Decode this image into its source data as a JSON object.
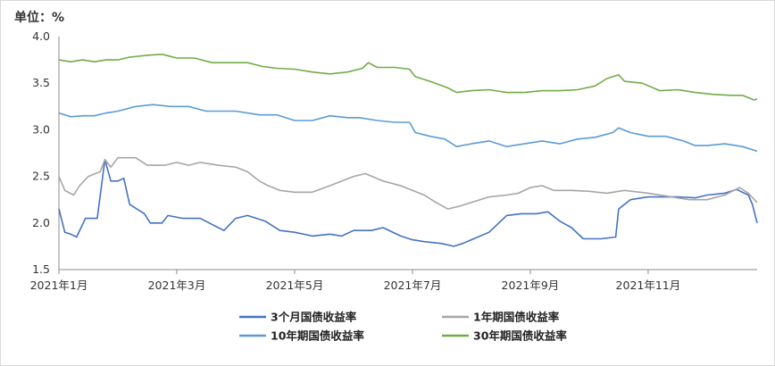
{
  "unit_label": "单位：%",
  "chart_data": {
    "type": "line",
    "ylim": [
      1.5,
      4.0
    ],
    "y_ticks": [
      "1.5",
      "2.0",
      "2.5",
      "3.0",
      "3.5",
      "4.0"
    ],
    "x_ticks": [
      "2021年1月",
      "2021年3月",
      "2021年5月",
      "2021年7月",
      "2021年9月",
      "2021年11月"
    ],
    "x_tick_months": [
      1,
      3,
      5,
      7,
      9,
      11
    ],
    "grid": false,
    "legend_position": "bottom",
    "series": [
      {
        "name": "3个月国债收益率",
        "color": "#4472c4",
        "points": [
          [
            1.0,
            2.15
          ],
          [
            1.1,
            1.9
          ],
          [
            1.2,
            1.88
          ],
          [
            1.3,
            1.85
          ],
          [
            1.45,
            2.05
          ],
          [
            1.65,
            2.05
          ],
          [
            1.78,
            2.68
          ],
          [
            1.88,
            2.45
          ],
          [
            2.0,
            2.45
          ],
          [
            2.1,
            2.48
          ],
          [
            2.2,
            2.2
          ],
          [
            2.45,
            2.1
          ],
          [
            2.55,
            2.0
          ],
          [
            2.75,
            2.0
          ],
          [
            2.85,
            2.08
          ],
          [
            3.1,
            2.05
          ],
          [
            3.4,
            2.05
          ],
          [
            3.55,
            2.0
          ],
          [
            3.8,
            1.92
          ],
          [
            4.0,
            2.05
          ],
          [
            4.2,
            2.08
          ],
          [
            4.5,
            2.02
          ],
          [
            4.75,
            1.92
          ],
          [
            5.0,
            1.9
          ],
          [
            5.3,
            1.86
          ],
          [
            5.6,
            1.88
          ],
          [
            5.8,
            1.86
          ],
          [
            6.0,
            1.92
          ],
          [
            6.3,
            1.92
          ],
          [
            6.5,
            1.95
          ],
          [
            6.8,
            1.86
          ],
          [
            7.0,
            1.82
          ],
          [
            7.2,
            1.8
          ],
          [
            7.5,
            1.78
          ],
          [
            7.7,
            1.75
          ],
          [
            7.85,
            1.78
          ],
          [
            8.0,
            1.82
          ],
          [
            8.3,
            1.9
          ],
          [
            8.6,
            2.08
          ],
          [
            8.85,
            2.1
          ],
          [
            9.1,
            2.1
          ],
          [
            9.3,
            2.12
          ],
          [
            9.5,
            2.02
          ],
          [
            9.7,
            1.95
          ],
          [
            9.9,
            1.83
          ],
          [
            10.2,
            1.83
          ],
          [
            10.45,
            1.85
          ],
          [
            10.5,
            2.15
          ],
          [
            10.7,
            2.25
          ],
          [
            11.0,
            2.28
          ],
          [
            11.5,
            2.28
          ],
          [
            11.8,
            2.27
          ],
          [
            12.0,
            2.3
          ],
          [
            12.3,
            2.32
          ],
          [
            12.5,
            2.36
          ],
          [
            12.7,
            2.3
          ],
          [
            12.77,
            2.2
          ],
          [
            12.85,
            2.0
          ]
        ]
      },
      {
        "name": "1年期国债收益率",
        "color": "#a6a6a6",
        "points": [
          [
            1.0,
            2.5
          ],
          [
            1.1,
            2.35
          ],
          [
            1.25,
            2.3
          ],
          [
            1.35,
            2.4
          ],
          [
            1.5,
            2.5
          ],
          [
            1.7,
            2.55
          ],
          [
            1.78,
            2.68
          ],
          [
            1.88,
            2.6
          ],
          [
            2.0,
            2.7
          ],
          [
            2.3,
            2.7
          ],
          [
            2.5,
            2.62
          ],
          [
            2.8,
            2.62
          ],
          [
            3.0,
            2.65
          ],
          [
            3.2,
            2.62
          ],
          [
            3.4,
            2.65
          ],
          [
            3.7,
            2.62
          ],
          [
            4.0,
            2.6
          ],
          [
            4.2,
            2.55
          ],
          [
            4.4,
            2.45
          ],
          [
            4.55,
            2.4
          ],
          [
            4.75,
            2.35
          ],
          [
            5.0,
            2.33
          ],
          [
            5.3,
            2.33
          ],
          [
            5.6,
            2.4
          ],
          [
            5.8,
            2.45
          ],
          [
            6.0,
            2.5
          ],
          [
            6.2,
            2.53
          ],
          [
            6.5,
            2.45
          ],
          [
            6.8,
            2.4
          ],
          [
            7.0,
            2.35
          ],
          [
            7.2,
            2.3
          ],
          [
            7.4,
            2.22
          ],
          [
            7.6,
            2.15
          ],
          [
            7.8,
            2.18
          ],
          [
            8.0,
            2.22
          ],
          [
            8.3,
            2.28
          ],
          [
            8.6,
            2.3
          ],
          [
            8.8,
            2.32
          ],
          [
            9.0,
            2.38
          ],
          [
            9.2,
            2.4
          ],
          [
            9.4,
            2.35
          ],
          [
            9.7,
            2.35
          ],
          [
            10.0,
            2.34
          ],
          [
            10.3,
            2.32
          ],
          [
            10.6,
            2.35
          ],
          [
            11.0,
            2.32
          ],
          [
            11.4,
            2.28
          ],
          [
            11.7,
            2.25
          ],
          [
            12.0,
            2.25
          ],
          [
            12.3,
            2.3
          ],
          [
            12.55,
            2.38
          ],
          [
            12.7,
            2.32
          ],
          [
            12.85,
            2.22
          ]
        ]
      },
      {
        "name": "10年期国债收益率",
        "color": "#5b9bd5",
        "points": [
          [
            1.0,
            3.18
          ],
          [
            1.2,
            3.14
          ],
          [
            1.4,
            3.15
          ],
          [
            1.6,
            3.15
          ],
          [
            1.8,
            3.18
          ],
          [
            2.0,
            3.2
          ],
          [
            2.3,
            3.25
          ],
          [
            2.6,
            3.27
          ],
          [
            2.9,
            3.25
          ],
          [
            3.2,
            3.25
          ],
          [
            3.5,
            3.2
          ],
          [
            3.8,
            3.2
          ],
          [
            4.0,
            3.2
          ],
          [
            4.2,
            3.18
          ],
          [
            4.4,
            3.16
          ],
          [
            4.7,
            3.16
          ],
          [
            5.0,
            3.1
          ],
          [
            5.3,
            3.1
          ],
          [
            5.6,
            3.15
          ],
          [
            5.9,
            3.13
          ],
          [
            6.1,
            3.13
          ],
          [
            6.4,
            3.1
          ],
          [
            6.7,
            3.08
          ],
          [
            6.95,
            3.08
          ],
          [
            7.05,
            2.97
          ],
          [
            7.3,
            2.93
          ],
          [
            7.55,
            2.9
          ],
          [
            7.75,
            2.82
          ],
          [
            8.0,
            2.85
          ],
          [
            8.3,
            2.88
          ],
          [
            8.6,
            2.82
          ],
          [
            8.9,
            2.85
          ],
          [
            9.2,
            2.88
          ],
          [
            9.5,
            2.85
          ],
          [
            9.8,
            2.9
          ],
          [
            10.1,
            2.92
          ],
          [
            10.4,
            2.97
          ],
          [
            10.5,
            3.02
          ],
          [
            10.7,
            2.97
          ],
          [
            11.0,
            2.93
          ],
          [
            11.3,
            2.93
          ],
          [
            11.6,
            2.88
          ],
          [
            11.8,
            2.83
          ],
          [
            12.0,
            2.83
          ],
          [
            12.3,
            2.85
          ],
          [
            12.6,
            2.82
          ],
          [
            12.85,
            2.77
          ]
        ]
      },
      {
        "name": "30年期国债收益率",
        "color": "#70ad47",
        "points": [
          [
            1.0,
            3.75
          ],
          [
            1.2,
            3.73
          ],
          [
            1.4,
            3.75
          ],
          [
            1.6,
            3.73
          ],
          [
            1.8,
            3.75
          ],
          [
            2.0,
            3.75
          ],
          [
            2.2,
            3.78
          ],
          [
            2.5,
            3.8
          ],
          [
            2.75,
            3.81
          ],
          [
            3.0,
            3.77
          ],
          [
            3.3,
            3.77
          ],
          [
            3.6,
            3.72
          ],
          [
            3.9,
            3.72
          ],
          [
            4.2,
            3.72
          ],
          [
            4.45,
            3.68
          ],
          [
            4.7,
            3.66
          ],
          [
            5.0,
            3.65
          ],
          [
            5.3,
            3.62
          ],
          [
            5.6,
            3.6
          ],
          [
            5.9,
            3.62
          ],
          [
            6.15,
            3.66
          ],
          [
            6.25,
            3.72
          ],
          [
            6.4,
            3.67
          ],
          [
            6.7,
            3.67
          ],
          [
            6.95,
            3.65
          ],
          [
            7.05,
            3.57
          ],
          [
            7.3,
            3.52
          ],
          [
            7.6,
            3.45
          ],
          [
            7.75,
            3.4
          ],
          [
            8.0,
            3.42
          ],
          [
            8.3,
            3.43
          ],
          [
            8.6,
            3.4
          ],
          [
            8.9,
            3.4
          ],
          [
            9.2,
            3.42
          ],
          [
            9.5,
            3.42
          ],
          [
            9.8,
            3.43
          ],
          [
            10.1,
            3.47
          ],
          [
            10.3,
            3.55
          ],
          [
            10.5,
            3.59
          ],
          [
            10.6,
            3.52
          ],
          [
            10.9,
            3.5
          ],
          [
            11.2,
            3.42
          ],
          [
            11.5,
            3.43
          ],
          [
            11.8,
            3.4
          ],
          [
            12.1,
            3.38
          ],
          [
            12.4,
            3.37
          ],
          [
            12.6,
            3.37
          ],
          [
            12.8,
            3.32
          ],
          [
            12.85,
            3.33
          ]
        ]
      }
    ]
  }
}
